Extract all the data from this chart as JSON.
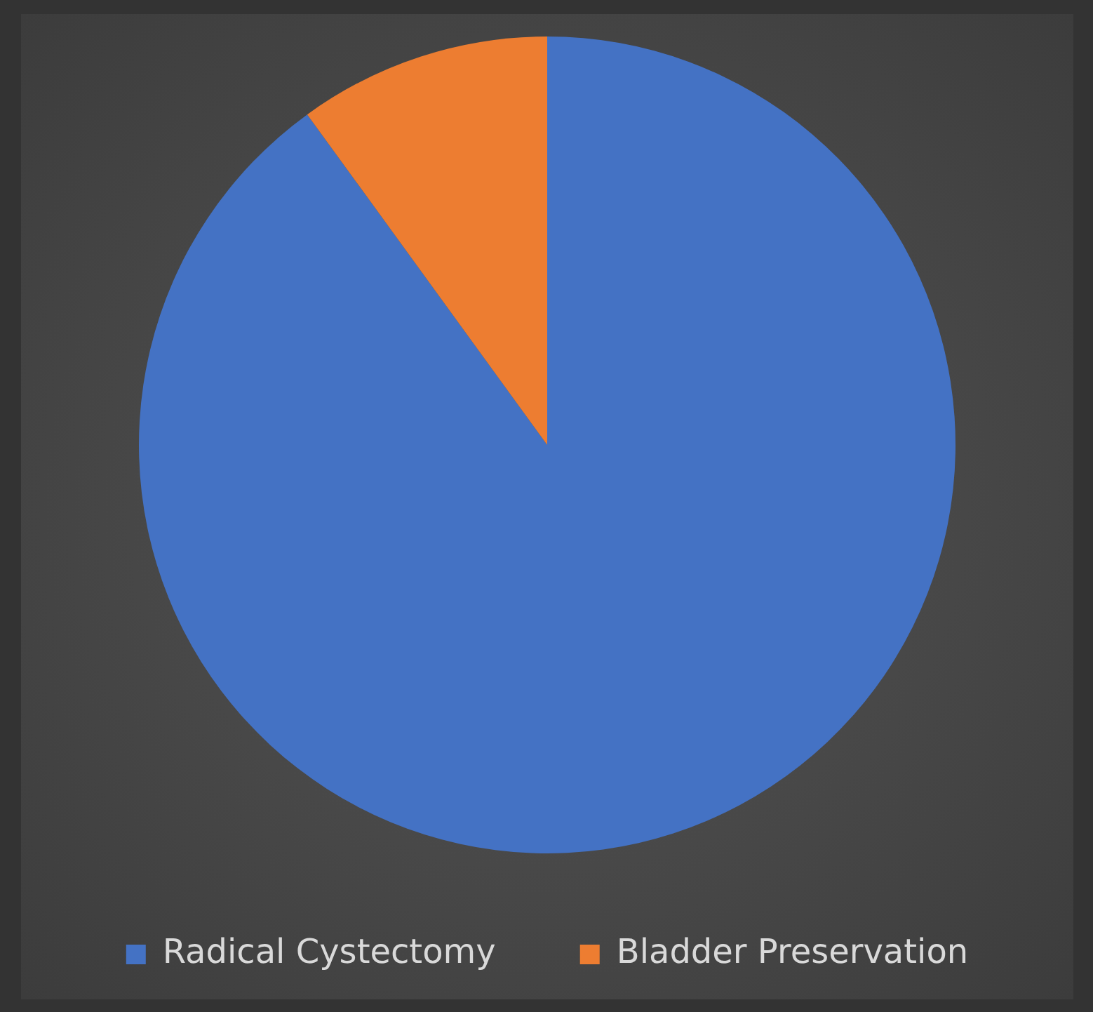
{
  "chart_data": {
    "type": "pie",
    "categories": [
      "Radical Cystectomy",
      "Bladder Preservation"
    ],
    "values": [
      90,
      10
    ],
    "colors": [
      "#4472c4",
      "#ed7d31"
    ],
    "legend": "bottom"
  }
}
